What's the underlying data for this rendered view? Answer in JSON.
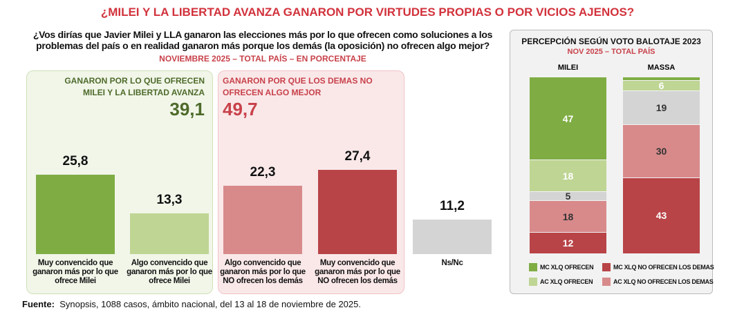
{
  "title": "¿MILEI Y LA LIBERTAD AVANZA GANARON POR VIRTUDES PROPIAS O POR VICIOS AJENOS?",
  "question": "¿Vos dirías que Javier Milei y LLA ganaron las elecciones más por lo que ofrecen como soluciones a los problemas del país o en realidad ganaron más porque los demás (la oposición) no ofrecen algo mejor?",
  "subtitle": "NOVIEMBRE 2025 – TOTAL PAÍS – EN PORCENTAJE",
  "groups": {
    "green": {
      "heading": "GANARON POR LO QUE OFRECEN MILEI Y LA LIBERTAD AVANZA",
      "total": "39,1"
    },
    "red": {
      "heading": "GANARON POR QUE LOS DEMAS NO OFRECEN ALGO MEJOR",
      "total": "49,7"
    }
  },
  "source": {
    "label": "Fuente:",
    "text": "Synopsis, 1088 casos, ámbito nacional, del 13 al 18 de noviembre de 2025."
  },
  "chart_data": [
    {
      "type": "bar",
      "categories": [
        "Muy convencido que ganaron más por lo que ofrece Milei",
        "Algo convencido que ganaron más por lo que ofrece Milei",
        "Algo convencido que ganaron más por lo que NO ofrecen los demás",
        "Muy convencido que ganaron más por lo que NO ofrecen los demás",
        "Ns/Nc"
      ],
      "values": [
        25.8,
        13.3,
        22.3,
        27.4,
        11.2
      ],
      "labels": [
        "25,8",
        "13,3",
        "22,3",
        "27,4",
        "11,2"
      ],
      "colors": [
        "#7fad44",
        "#bfd594",
        "#d88a8b",
        "#b84447",
        "#d4d4d4"
      ],
      "ylim": [
        0,
        30
      ]
    },
    {
      "type": "bar",
      "stacked": true,
      "title": "PERCEPCIÓN SEGÚN VOTO BALOTAJE 2023",
      "subtitle": "NOV 2025 – TOTAL PAÍS",
      "categories": [
        "MILEI",
        "MASSA"
      ],
      "series": [
        {
          "name": "MC XLQ OFRECEN",
          "color": "#7fad44",
          "text": "#ffffff",
          "values": [
            47,
            2
          ],
          "labels": [
            "47",
            ""
          ]
        },
        {
          "name": "AC XLQ OFRECEN",
          "color": "#bfd594",
          "text": "#ffffff",
          "values": [
            18,
            6
          ],
          "labels": [
            "18",
            "6"
          ]
        },
        {
          "name": "",
          "color": "#d4d4d4",
          "text": "#333333",
          "values": [
            5,
            19
          ],
          "labels": [
            "5",
            "19"
          ]
        },
        {
          "name": "AC XLQ NO OFRECEN LOS DEMAS",
          "color": "#d88a8b",
          "text": "#333333",
          "values": [
            18,
            30
          ],
          "labels": [
            "18",
            "30"
          ]
        },
        {
          "name": "MC XLQ NO OFRECEN LOS DEMAS",
          "color": "#b84447",
          "text": "#ffffff",
          "values": [
            12,
            43
          ],
          "labels": [
            "12",
            "43"
          ]
        }
      ],
      "ylim": [
        0,
        100
      ]
    }
  ]
}
